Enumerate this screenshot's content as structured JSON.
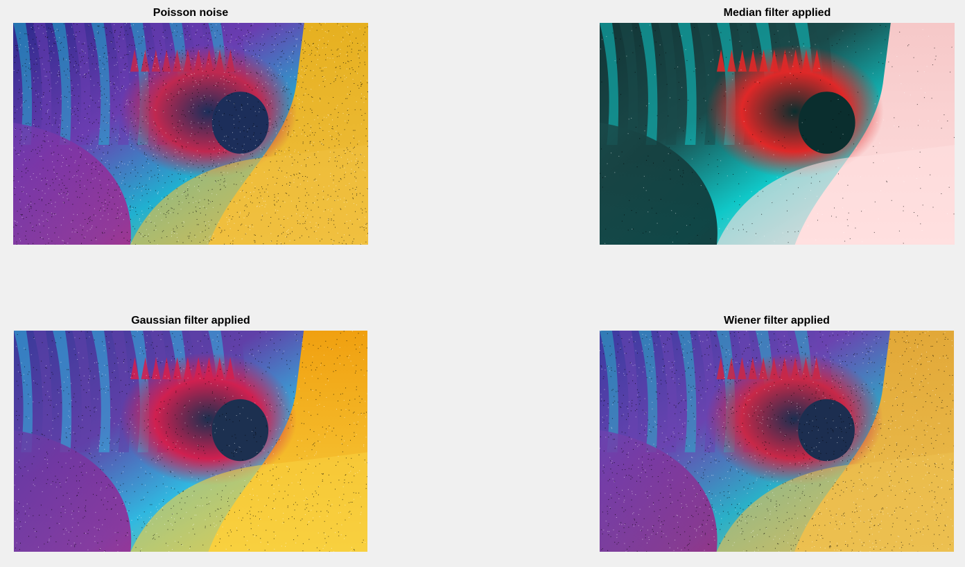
{
  "figure": {
    "background": "#f0f0f0",
    "panels": [
      {
        "title": "Poisson noise",
        "image_description_icon": "noisy-abstract-swirl-image",
        "palette": {
          "base_top_left": "#2d2a8c",
          "mid_left": "#6a3db0",
          "bottom_left": "#b0208a",
          "center_dark": "#1c2e5a",
          "crest": "#c02850",
          "right": "#e6b020",
          "bottom_right": "#f0c040",
          "accent": "#20b0d0"
        },
        "noise_density": 0.55
      },
      {
        "title": "Median filter applied",
        "image_description_icon": "filtered-abstract-swirl-image",
        "palette": {
          "base_top_left": "#123536",
          "mid_left": "#1a4a4a",
          "bottom_left": "#0e2a2a",
          "center_dark": "#0a2e2e",
          "crest": "#e02828",
          "right": "#f6c8c8",
          "bottom_right": "#ffe0e0",
          "accent": "#10c8c8"
        },
        "noise_density": 0.08
      },
      {
        "title": "Gaussian filter applied",
        "image_description_icon": "filtered-abstract-swirl-image",
        "palette": {
          "base_top_left": "#3a3a9a",
          "mid_left": "#6040a8",
          "bottom_left": "#a02090",
          "center_dark": "#1c3050",
          "crest": "#d02050",
          "right": "#f0a010",
          "bottom_right": "#f8d040",
          "accent": "#30b8e0"
        },
        "noise_density": 0.3
      },
      {
        "title": "Wiener filter applied",
        "image_description_icon": "filtered-abstract-swirl-image",
        "palette": {
          "base_top_left": "#3b3ba0",
          "mid_left": "#6a44b0",
          "bottom_left": "#a02080",
          "center_dark": "#1c2e50",
          "crest": "#c82848",
          "right": "#e2a838",
          "bottom_right": "#ecc050",
          "accent": "#2ab0c8"
        },
        "noise_density": 0.42
      }
    ]
  }
}
